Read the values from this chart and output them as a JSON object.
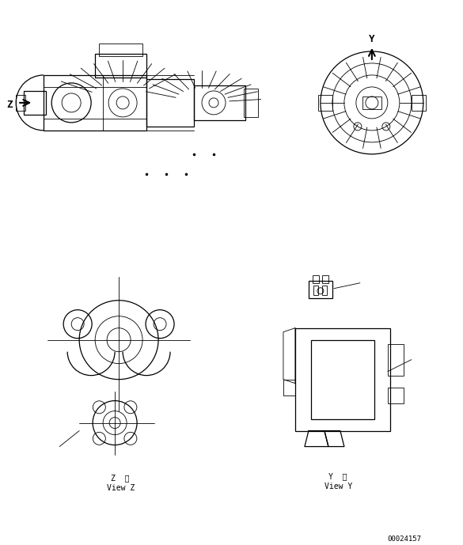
{
  "bg_color": "#ffffff",
  "line_color": "#000000",
  "fig_width": 5.85,
  "fig_height": 6.89,
  "dpi": 100,
  "label_z_arrow": "Z",
  "label_y_arrow": "Y",
  "label_view_z_line1": "Z  視",
  "label_view_z_line2": "View Z",
  "label_view_y_line1": "Y  視",
  "label_view_y_line2": "View Y",
  "doc_number": "00024157",
  "font_size_labels": 7,
  "font_size_doc": 6.5
}
